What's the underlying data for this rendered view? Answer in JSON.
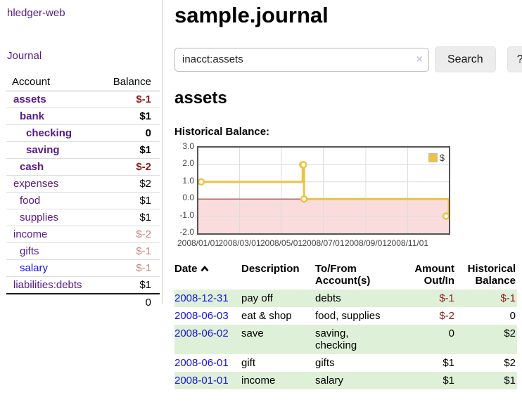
{
  "app": {
    "brand": "hledger-web",
    "nav_journal": "Journal"
  },
  "sidebar": {
    "col_account": "Account",
    "col_balance": "Balance",
    "accounts": [
      {
        "name": "assets",
        "level": 0,
        "bold": true,
        "link": "purple",
        "balance": "$-1",
        "balance_class": "neg-strong"
      },
      {
        "name": "bank",
        "level": 1,
        "bold": true,
        "link": "purple",
        "balance": "$1",
        "balance_class": ""
      },
      {
        "name": "checking",
        "level": 2,
        "bold": true,
        "link": "purple",
        "balance": "0",
        "balance_class": ""
      },
      {
        "name": "saving",
        "level": 2,
        "bold": true,
        "link": "purple",
        "balance": "$1",
        "balance_class": ""
      },
      {
        "name": "cash",
        "level": 1,
        "bold": true,
        "link": "purple",
        "balance": "$-2",
        "balance_class": "neg-strong"
      },
      {
        "name": "expenses",
        "level": 0,
        "bold": false,
        "link": "purple",
        "balance": "$2",
        "balance_class": ""
      },
      {
        "name": "food",
        "level": 1,
        "bold": false,
        "link": "purple",
        "balance": "$1",
        "balance_class": ""
      },
      {
        "name": "supplies",
        "level": 1,
        "bold": false,
        "link": "purple",
        "balance": "$1",
        "balance_class": ""
      },
      {
        "name": "income",
        "level": 0,
        "bold": false,
        "link": "purple",
        "balance": "$-2",
        "balance_class": "neg-soft"
      },
      {
        "name": "gifts",
        "level": 1,
        "bold": false,
        "link": "purple",
        "balance": "$-1",
        "balance_class": "neg-soft"
      },
      {
        "name": "salary",
        "level": 1,
        "bold": false,
        "link": "blue",
        "balance": "$-1",
        "balance_class": "neg-soft"
      },
      {
        "name": "liabilities:debts",
        "level": 0,
        "bold": false,
        "link": "purple",
        "balance": "$1",
        "balance_class": ""
      }
    ],
    "total": "0"
  },
  "header": {
    "title": "sample.journal"
  },
  "search": {
    "value": "inacct:assets",
    "clear_icon": "×",
    "button_label": "Search",
    "help_label": "?"
  },
  "account_page": {
    "heading": "assets",
    "chart_label": "Historical Balance:"
  },
  "chart_data": {
    "type": "line",
    "title": "Historical Balance",
    "step": true,
    "x": [
      "2008-01-01",
      "2008-06-01",
      "2008-06-02",
      "2008-06-03",
      "2008-12-31"
    ],
    "series": [
      {
        "name": "$",
        "color": "#edc240",
        "values": [
          1,
          2,
          2,
          0,
          -1
        ]
      }
    ],
    "xlim": [
      "2008-01-01",
      "2008-12-31"
    ],
    "ylim": [
      -2,
      3
    ],
    "yticks": [
      3,
      2,
      1,
      0,
      -1,
      -2
    ],
    "ytick_labels": [
      "3.0",
      "2.0",
      "1.0",
      "0.0",
      "-1.0",
      "-2.0"
    ],
    "xticks": [
      "2008-01-01",
      "2008-03-01",
      "2008-05-01",
      "2008-07-01",
      "2008-09-01",
      "2008-11-01"
    ],
    "xtick_labels": [
      "2008/01/01",
      "2008/03/01",
      "2008/05/01",
      "2008/07/01",
      "2008/09/01",
      "2008/11/01"
    ],
    "grid": true,
    "legend_position": "top-right",
    "legend_label": "$",
    "colors": {
      "gridline": "#ddd",
      "zero_line": "#993333",
      "negative_fill": "#fbdcdc",
      "border": "#545454"
    }
  },
  "register": {
    "columns": {
      "date": "Date",
      "description": "Description",
      "accounts": "To/From Account(s)",
      "amount": "Amount Out/In",
      "balance": "Historical Balance"
    },
    "sort": "ascending",
    "rows": [
      {
        "date": "2008-12-31",
        "description": "pay off",
        "accounts": [
          "debts"
        ],
        "amount": "$-1",
        "amount_class": "neg-strong",
        "balance": "$-1",
        "balance_class": "neg-strong"
      },
      {
        "date": "2008-06-03",
        "description": "eat & shop",
        "accounts": [
          "food, supplies"
        ],
        "amount": "$-2",
        "amount_class": "neg-strong",
        "balance": "0",
        "balance_class": ""
      },
      {
        "date": "2008-06-02",
        "description": "save",
        "accounts": [
          "saving,",
          "checking"
        ],
        "amount": "0",
        "amount_class": "",
        "balance": "$2",
        "balance_class": ""
      },
      {
        "date": "2008-06-01",
        "description": "gift",
        "accounts": [
          "gifts"
        ],
        "amount": "$1",
        "amount_class": "",
        "balance": "$2",
        "balance_class": ""
      },
      {
        "date": "2008-01-01",
        "description": "income",
        "accounts": [
          "salary"
        ],
        "amount": "$1",
        "amount_class": "",
        "balance": "$1",
        "balance_class": ""
      }
    ]
  }
}
